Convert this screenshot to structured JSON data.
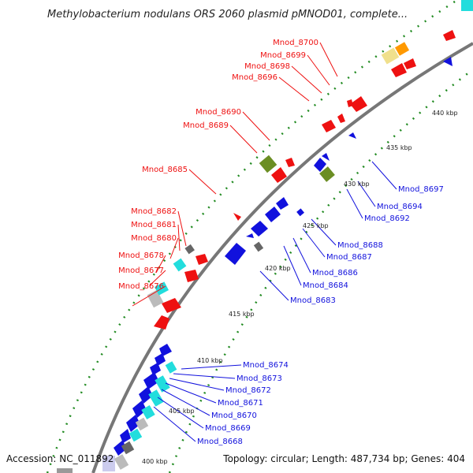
{
  "title": "Methylobacterium nodulans ORS 2060 plasmid pMNOD01, complete...",
  "footer": {
    "accession": "Accession: NC_011892",
    "summary": "Topology: circular; Length: 487,734 bp; Genes: 404"
  },
  "ticks": [
    "440 kbp",
    "435 kbp",
    "430 kbp",
    "425 kbp",
    "420 kbp",
    "415 kbp",
    "410 kbp",
    "405 kbp",
    "400 kbp"
  ],
  "genes_outer": [
    "Mnod_8700",
    "Mnod_8699",
    "Mnod_8698",
    "Mnod_8696",
    "Mnod_8690",
    "Mnod_8689",
    "Mnod_8685",
    "Mnod_8682",
    "Mnod_8681",
    "Mnod_8680",
    "Mnod_8678",
    "Mnod_8677",
    "Mnod_8676"
  ],
  "genes_inner": [
    "Mnod_8697",
    "Mnod_8694",
    "Mnod_8692",
    "Mnod_8688",
    "Mnod_8687",
    "Mnod_8686",
    "Mnod_8684",
    "Mnod_8683",
    "Mnod_8674",
    "Mnod_8673",
    "Mnod_8672",
    "Mnod_8671",
    "Mnod_8670",
    "Mnod_8669",
    "Mnod_8668"
  ],
  "colors": {
    "forward": "#ee1111",
    "reverse": "#1111dd",
    "rna": "#22dddd",
    "pseudo": "#888888",
    "other": "#6b8e23",
    "tick": "#228B22"
  }
}
